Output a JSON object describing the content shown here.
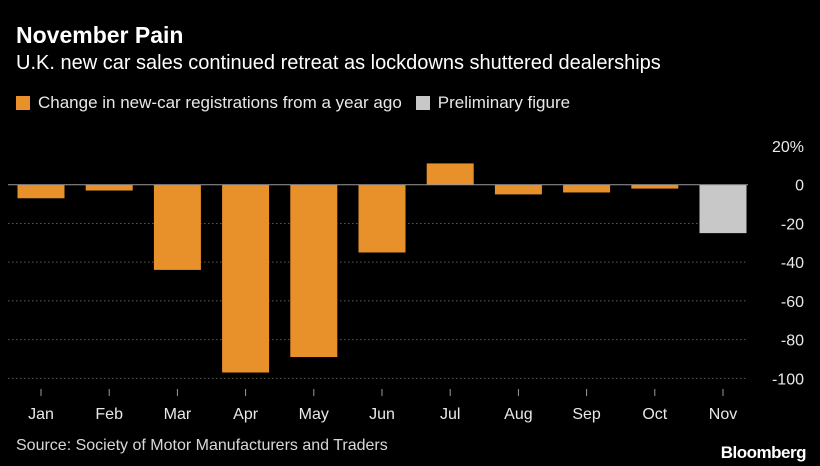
{
  "title": "November Pain",
  "subtitle": "U.K. new car sales continued retreat as lockdowns shuttered dealerships",
  "legend": {
    "main": "Change in new-car registrations from a year ago",
    "preliminary": "Preliminary figure"
  },
  "source": "Source: Society of Motor Manufacturers and Traders",
  "brand": "Bloomberg",
  "colors": {
    "main": "#e8902a",
    "preliminary": "#c8c8c8",
    "grid": "#5a5a5a",
    "zero": "#9a9a9a",
    "text": "#e8e8e8"
  },
  "chart_data": {
    "type": "bar",
    "title": "November Pain",
    "xlabel": "",
    "ylabel": "",
    "ylim": [
      -105,
      20
    ],
    "yticks": [
      20,
      0,
      -20,
      -40,
      -60,
      -80,
      -100
    ],
    "ytick_labels": [
      "20%",
      "0",
      "-20",
      "-40",
      "-60",
      "-80",
      "-100"
    ],
    "categories": [
      "Jan",
      "Feb",
      "Mar",
      "Apr",
      "May",
      "Jun",
      "Jul",
      "Aug",
      "Sep",
      "Oct",
      "Nov"
    ],
    "values": [
      -7,
      -3,
      -44,
      -97,
      -89,
      -35,
      11,
      -5,
      -4,
      -2,
      -25
    ],
    "preliminary": [
      false,
      false,
      false,
      false,
      false,
      false,
      false,
      false,
      false,
      false,
      true
    ],
    "grid": true,
    "legend_position": "top-left"
  }
}
